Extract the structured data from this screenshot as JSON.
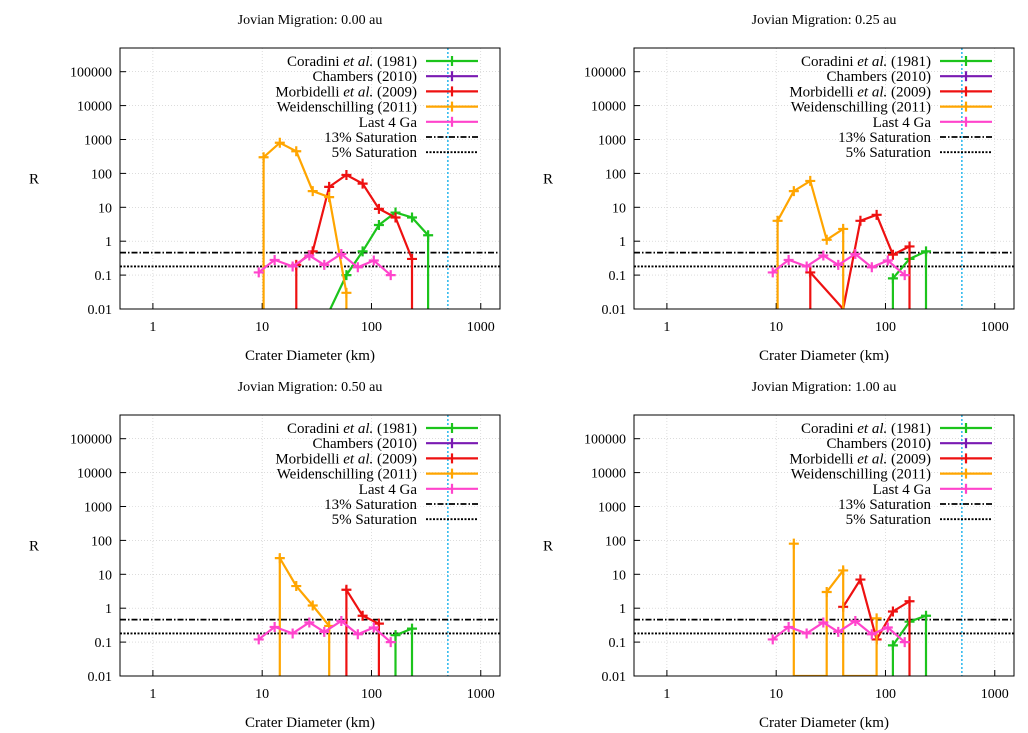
{
  "figure": {
    "ylabel": "R",
    "xlabel": "Crater Diameter (km)",
    "x_ticks": [
      1,
      10,
      100,
      1000
    ],
    "y_ticks": [
      0.01,
      0.1,
      1,
      10,
      100,
      1000,
      10000,
      100000
    ],
    "x_tick_labels": [
      "1",
      "10",
      "100",
      "1000"
    ],
    "y_tick_labels": [
      "0.01",
      "0.1",
      "1",
      "10",
      "100",
      "1000",
      "10000",
      "100000"
    ],
    "legend": [
      {
        "key": "coradini",
        "pre": "Coradini ",
        "ital": "et al.",
        "post": " (1981)",
        "color": "#1cc41c"
      },
      {
        "key": "chambers",
        "pre": "Chambers (2010)",
        "ital": "",
        "post": "",
        "color": "#7a1ab2"
      },
      {
        "key": "morbidelli",
        "pre": "Morbidelli ",
        "ital": "et al.",
        "post": " (2009)",
        "color": "#ee1111"
      },
      {
        "key": "weidenschilling",
        "pre": "Weidenschilling (2011)",
        "ital": "",
        "post": "",
        "color": "#ffa500"
      },
      {
        "key": "last4ga",
        "pre": "Last 4 Ga",
        "ital": "",
        "post": "",
        "color": "#ff44cc"
      },
      {
        "key": "sat13",
        "pre": "13% Saturation",
        "ital": "",
        "post": "",
        "color": "#000000"
      },
      {
        "key": "sat5",
        "pre": "5% Saturation",
        "ital": "",
        "post": "",
        "color": "#000000"
      }
    ]
  },
  "chart_data": [
    {
      "type": "line",
      "title": "Jovian Migration: 0.00 au",
      "xlabel": "Crater Diameter (km)",
      "ylabel": "R",
      "xscale": "log",
      "yscale": "log",
      "xlim": [
        0.5,
        1500
      ],
      "ylim": [
        0.01,
        500000
      ],
      "saturation": {
        "sat13": 0.46,
        "sat5": 0.18
      },
      "vline": {
        "x": 500,
        "color": "#33bbee"
      },
      "series": [
        {
          "name": "Coradini et al. (1981)",
          "key": "coradini",
          "color": "#1cc41c",
          "x": [
            42,
            59,
            83,
            117,
            166,
            235,
            330,
            330
          ],
          "y": [
            0.01,
            0.1,
            0.5,
            3.0,
            7.0,
            5.0,
            1.5,
            0.01
          ]
        },
        {
          "name": "Chambers (2010)",
          "key": "chambers",
          "color": "#7a1ab2",
          "x": [],
          "y": []
        },
        {
          "name": "Morbidelli et al. (2009)",
          "key": "morbidelli",
          "color": "#ee1111",
          "x": [
            20.5,
            20.5,
            29,
            41,
            59,
            83,
            117,
            166,
            235,
            235
          ],
          "y": [
            0.01,
            0.2,
            0.5,
            40,
            90,
            50,
            9.0,
            5.0,
            0.3,
            0.01
          ]
        },
        {
          "name": "Weidenschilling (2011)",
          "key": "weidenschilling",
          "color": "#ffa500",
          "x": [
            10.3,
            10.3,
            14.5,
            20.5,
            29,
            41,
            59,
            59
          ],
          "y": [
            0.01,
            300,
            800,
            450,
            30,
            20,
            0.03,
            0.01
          ]
        },
        {
          "name": "Last 4 Ga",
          "key": "last4ga",
          "color": "#ff44cc",
          "x": [
            9.3,
            13,
            19,
            27,
            37,
            53,
            75,
            105,
            150
          ],
          "y": [
            0.12,
            0.28,
            0.18,
            0.38,
            0.2,
            0.42,
            0.17,
            0.27,
            0.1
          ]
        }
      ]
    },
    {
      "type": "line",
      "title": "Jovian Migration: 0.25 au",
      "xlabel": "Crater Diameter (km)",
      "ylabel": "R",
      "xscale": "log",
      "yscale": "log",
      "xlim": [
        0.5,
        1500
      ],
      "ylim": [
        0.01,
        500000
      ],
      "saturation": {
        "sat13": 0.46,
        "sat5": 0.18
      },
      "vline": {
        "x": 500,
        "color": "#33bbee"
      },
      "series": [
        {
          "name": "Coradini et al. (1981)",
          "key": "coradini",
          "color": "#1cc41c",
          "x": [
            117,
            117,
            166,
            235,
            235
          ],
          "y": [
            0.01,
            0.08,
            0.3,
            0.5,
            0.01
          ]
        },
        {
          "name": "Chambers (2010)",
          "key": "chambers",
          "color": "#7a1ab2",
          "x": [],
          "y": []
        },
        {
          "name": "Morbidelli et al. (2009)",
          "key": "morbidelli",
          "color": "#ee1111",
          "x": [
            20.5,
            20.5,
            41,
            41,
            59,
            83,
            117,
            166,
            166
          ],
          "y": [
            0.01,
            0.12,
            0.01,
            0.01,
            4.0,
            6.0,
            0.4,
            0.7,
            0.01
          ]
        },
        {
          "name": "Weidenschilling (2011)",
          "key": "weidenschilling",
          "color": "#ffa500",
          "x": [
            10.3,
            10.3,
            14.5,
            20.5,
            29,
            41,
            41
          ],
          "y": [
            0.01,
            4.0,
            30,
            60,
            1.1,
            2.3,
            0.01
          ]
        },
        {
          "name": "Last 4 Ga",
          "key": "last4ga",
          "color": "#ff44cc",
          "x": [
            9.3,
            13,
            19,
            27,
            37,
            53,
            75,
            105,
            150
          ],
          "y": [
            0.12,
            0.28,
            0.18,
            0.38,
            0.2,
            0.42,
            0.17,
            0.27,
            0.1
          ]
        }
      ]
    },
    {
      "type": "line",
      "title": "Jovian Migration: 0.50 au",
      "xlabel": "Crater Diameter (km)",
      "ylabel": "R",
      "xscale": "log",
      "yscale": "log",
      "xlim": [
        0.5,
        1500
      ],
      "ylim": [
        0.01,
        500000
      ],
      "saturation": {
        "sat13": 0.46,
        "sat5": 0.18
      },
      "vline": {
        "x": 500,
        "color": "#33bbee"
      },
      "series": [
        {
          "name": "Coradini et al. (1981)",
          "key": "coradini",
          "color": "#1cc41c",
          "x": [
            166,
            166,
            235,
            235
          ],
          "y": [
            0.01,
            0.16,
            0.25,
            0.01
          ]
        },
        {
          "name": "Chambers (2010)",
          "key": "chambers",
          "color": "#7a1ab2",
          "x": [],
          "y": []
        },
        {
          "name": "Morbidelli et al. (2009)",
          "key": "morbidelli",
          "color": "#ee1111",
          "x": [
            59,
            59,
            83,
            117,
            117
          ],
          "y": [
            0.01,
            3.5,
            0.6,
            0.35,
            0.01
          ]
        },
        {
          "name": "Weidenschilling (2011)",
          "key": "weidenschilling",
          "color": "#ffa500",
          "x": [
            14.5,
            14.5,
            20.5,
            29,
            41,
            41
          ],
          "y": [
            0.01,
            30,
            4.5,
            1.2,
            0.3,
            0.01
          ]
        },
        {
          "name": "Last 4 Ga",
          "key": "last4ga",
          "color": "#ff44cc",
          "x": [
            9.3,
            13,
            19,
            27,
            37,
            53,
            75,
            105,
            150
          ],
          "y": [
            0.12,
            0.28,
            0.18,
            0.38,
            0.2,
            0.42,
            0.17,
            0.27,
            0.1
          ]
        }
      ]
    },
    {
      "type": "line",
      "title": "Jovian Migration: 1.00 au",
      "xlabel": "Crater Diameter (km)",
      "ylabel": "R",
      "xscale": "log",
      "yscale": "log",
      "xlim": [
        0.5,
        1500
      ],
      "ylim": [
        0.01,
        500000
      ],
      "saturation": {
        "sat13": 0.46,
        "sat5": 0.18
      },
      "vline": {
        "x": 500,
        "color": "#33bbee"
      },
      "series": [
        {
          "name": "Coradini et al. (1981)",
          "key": "coradini",
          "color": "#1cc41c",
          "x": [
            117,
            117,
            166,
            235,
            235
          ],
          "y": [
            0.01,
            0.08,
            0.4,
            0.6,
            0.01
          ]
        },
        {
          "name": "Chambers (2010)",
          "key": "chambers",
          "color": "#7a1ab2",
          "x": [],
          "y": []
        },
        {
          "name": "Morbidelli et al. (2009)",
          "key": "morbidelli",
          "color": "#ee1111",
          "x": [
            41,
            59,
            83,
            117,
            166,
            166
          ],
          "y": [
            1.1,
            7.0,
            0.12,
            0.8,
            1.6,
            0.01
          ]
        },
        {
          "name": "Weidenschilling (2011)",
          "key": "weidenschilling",
          "color": "#ffa500",
          "x": [
            14.5,
            14.5,
            14.5,
            29,
            29,
            41,
            41,
            83,
            83
          ],
          "y": [
            0.01,
            80,
            0.01,
            0.01,
            3.0,
            13,
            0.01,
            0.01,
            0.5
          ]
        },
        {
          "name": "Last 4 Ga",
          "key": "last4ga",
          "color": "#ff44cc",
          "x": [
            9.3,
            13,
            19,
            27,
            37,
            53,
            75,
            105,
            150
          ],
          "y": [
            0.12,
            0.28,
            0.18,
            0.38,
            0.2,
            0.42,
            0.17,
            0.27,
            0.1
          ]
        }
      ]
    }
  ]
}
